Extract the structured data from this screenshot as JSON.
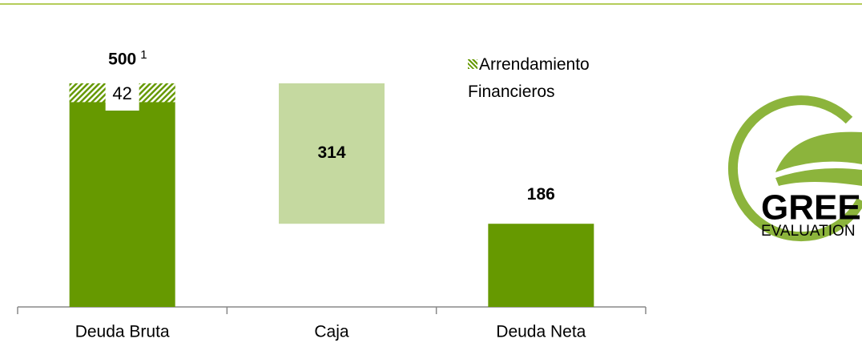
{
  "chart_data": {
    "type": "waterfall",
    "categories": [
      "Deuda Bruta",
      "Caja",
      "Deuda Neta"
    ],
    "values": [
      500,
      314,
      186
    ],
    "measures": [
      "total",
      "decrease",
      "total"
    ],
    "colors": {
      "total": "#669900",
      "decrease": "#c5d9a0"
    },
    "footnote": "1",
    "overlay": {
      "name": "Arrendamiento Financieros",
      "values": [
        42,
        null,
        null
      ],
      "color": "#669900",
      "pattern": "hatch"
    },
    "logo": {
      "title": "GREEN",
      "subtitle": "EVALUATION",
      "color": "#8cb43c"
    }
  }
}
